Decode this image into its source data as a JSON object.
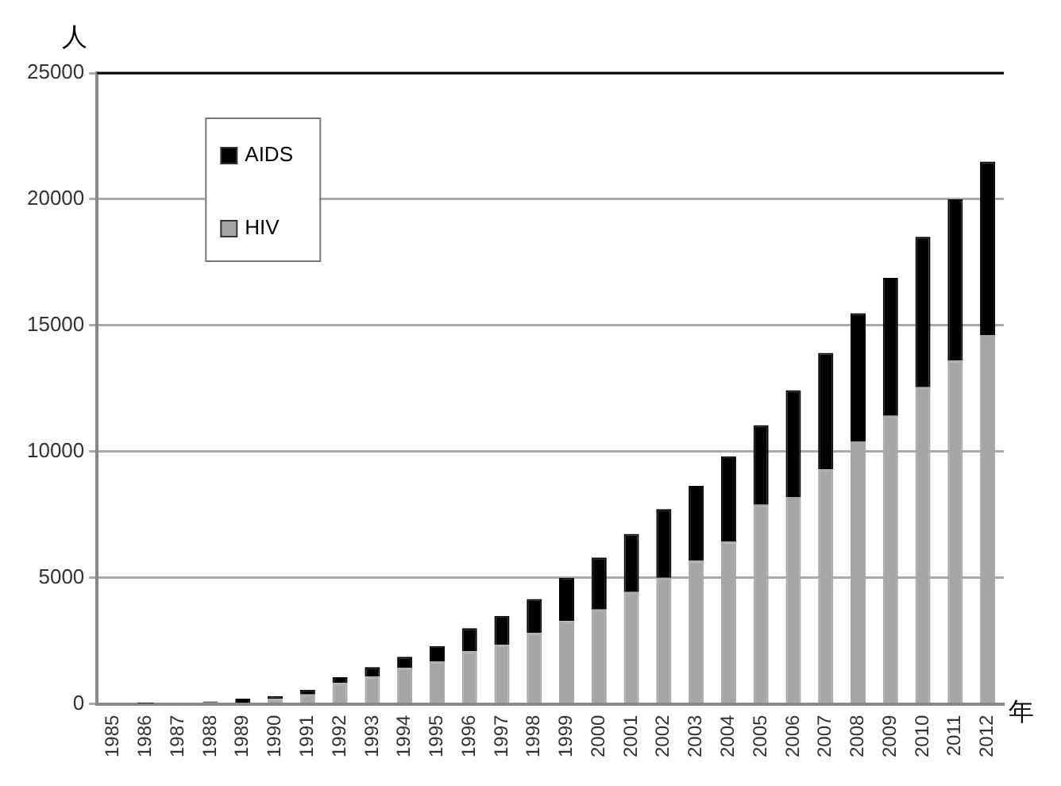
{
  "chart_data": {
    "type": "bar",
    "stacked": true,
    "xlabel": "年",
    "ylabel": "人",
    "categories": [
      "1985",
      "1986",
      "1987",
      "1988",
      "1989",
      "1990",
      "1991",
      "1992",
      "1993",
      "1994",
      "1995",
      "1996",
      "1997",
      "1998",
      "1999",
      "2000",
      "2001",
      "2002",
      "2003",
      "2004",
      "2005",
      "2006",
      "2007",
      "2008",
      "2009",
      "2010",
      "2011",
      "2012"
    ],
    "series": [
      {
        "name": "HIV",
        "color": "#a6a6a6",
        "values": [
          0,
          0,
          0,
          60,
          null,
          200,
          370,
          830,
          1080,
          1420,
          1670,
          2080,
          2340,
          2800,
          3280,
          3740,
          4430,
          5000,
          5670,
          6420,
          7890,
          8200,
          9290,
          10400,
          11420,
          12550,
          13600,
          14620
        ]
      },
      {
        "name": "AIDS",
        "color": "#000000",
        "values": [
          0,
          20,
          null,
          40,
          210,
          110,
          190,
          230,
          380,
          450,
          620,
          920,
          1150,
          1360,
          1720,
          2060,
          2310,
          2720,
          2970,
          3390,
          3160,
          4230,
          4620,
          5080,
          5460,
          5960,
          6400,
          6870
        ]
      }
    ],
    "ylim": [
      0,
      25000
    ],
    "yticks": [
      0,
      5000,
      10000,
      15000,
      20000,
      25000
    ],
    "grid": "y",
    "legend": "top left"
  }
}
